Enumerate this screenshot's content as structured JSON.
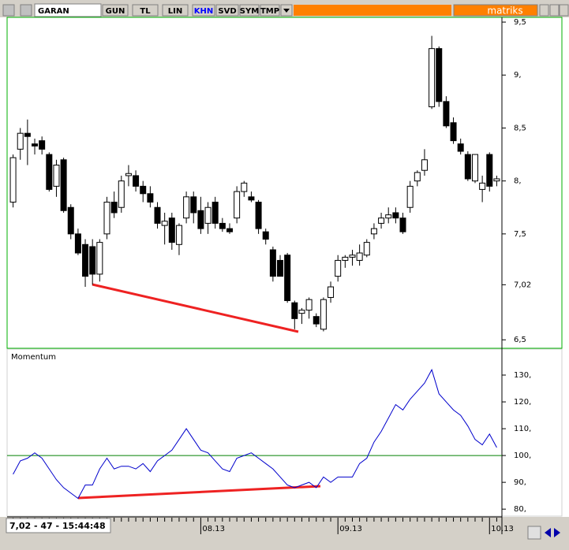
{
  "toolbar": {
    "symbol": "GARAN",
    "buttons": [
      "GUN",
      "TL",
      "LIN",
      "KHN",
      "SVD",
      "SYM",
      "TMP"
    ],
    "brand": "matriks"
  },
  "status": "7,02 - 47 - 15:44:48",
  "chart_data": [
    {
      "type": "candlestick",
      "categories": [
        null,
        null,
        null,
        null,
        null,
        null,
        null,
        null,
        null,
        null,
        null,
        null,
        null,
        null,
        null,
        null,
        null,
        null,
        null,
        null,
        null,
        null,
        null,
        null,
        null,
        null,
        "08.13",
        null,
        null,
        null,
        null,
        null,
        null,
        null,
        null,
        null,
        null,
        null,
        null,
        null,
        null,
        null,
        null,
        null,
        null,
        "09.13",
        null,
        null,
        null,
        null,
        null,
        null,
        null,
        null,
        null,
        null,
        null,
        null,
        null,
        null,
        null,
        null,
        null,
        null,
        null,
        null,
        "10.13",
        null
      ],
      "open": [
        7.8,
        8.3,
        8.45,
        8.35,
        8.38,
        8.25,
        7.95,
        8.2,
        7.75,
        7.5,
        7.4,
        7.38,
        7.12,
        7.5,
        7.8,
        7.75,
        8.05,
        8.05,
        7.95,
        7.88,
        7.75,
        7.58,
        7.65,
        7.4,
        7.65,
        7.85,
        7.72,
        7.6,
        7.8,
        7.6,
        7.55,
        7.65,
        7.9,
        7.85,
        7.8,
        7.52,
        7.35,
        7.25,
        7.3,
        6.85,
        6.75,
        6.78,
        6.72,
        6.6,
        6.9,
        7.1,
        7.25,
        7.28,
        7.25,
        7.3,
        7.5,
        7.6,
        7.65,
        7.7,
        7.65,
        7.75,
        8.0,
        8.1,
        8.7,
        9.25,
        8.75,
        8.55,
        8.35,
        8.25,
        8.0,
        7.92,
        8.25,
        8.0
      ],
      "high": [
        8.25,
        8.5,
        8.58,
        8.4,
        8.42,
        8.27,
        8.2,
        8.22,
        7.78,
        7.55,
        7.45,
        7.45,
        7.45,
        7.85,
        7.9,
        8.05,
        8.15,
        8.1,
        8.0,
        7.95,
        7.8,
        7.7,
        7.7,
        7.6,
        7.9,
        7.9,
        7.85,
        7.8,
        7.85,
        7.65,
        7.6,
        7.95,
        8.0,
        7.9,
        7.82,
        7.55,
        7.38,
        7.3,
        7.32,
        6.87,
        6.8,
        6.9,
        6.75,
        6.9,
        7.05,
        7.3,
        7.3,
        7.35,
        7.4,
        7.45,
        7.6,
        7.7,
        7.75,
        7.75,
        7.7,
        8.0,
        8.1,
        8.3,
        9.37,
        9.27,
        8.8,
        8.6,
        8.4,
        8.28,
        8.25,
        8.05,
        8.27,
        8.05
      ],
      "low": [
        7.75,
        8.2,
        8.15,
        8.25,
        8.25,
        7.9,
        7.85,
        7.7,
        7.45,
        7.3,
        7.0,
        7.02,
        7.05,
        7.45,
        7.65,
        7.7,
        7.95,
        7.9,
        7.8,
        7.75,
        7.55,
        7.4,
        7.35,
        7.3,
        7.6,
        7.6,
        7.5,
        7.5,
        7.55,
        7.52,
        7.5,
        7.6,
        7.85,
        7.8,
        7.5,
        7.4,
        7.05,
        7.1,
        6.85,
        6.6,
        6.65,
        6.7,
        6.62,
        6.58,
        6.85,
        7.05,
        7.18,
        7.2,
        7.2,
        7.28,
        7.45,
        7.55,
        7.6,
        7.6,
        7.5,
        7.7,
        7.95,
        8.05,
        8.68,
        8.7,
        8.5,
        8.35,
        8.25,
        8.0,
        7.98,
        7.8,
        7.9,
        7.95
      ],
      "close": [
        8.22,
        8.45,
        8.42,
        8.33,
        8.3,
        7.92,
        8.15,
        7.72,
        7.5,
        7.32,
        7.1,
        7.12,
        7.42,
        7.8,
        7.7,
        8.0,
        8.07,
        7.95,
        7.88,
        7.8,
        7.6,
        7.62,
        7.42,
        7.58,
        7.85,
        7.7,
        7.55,
        7.75,
        7.6,
        7.55,
        7.52,
        7.9,
        7.98,
        7.82,
        7.55,
        7.45,
        7.1,
        7.1,
        6.87,
        6.7,
        6.78,
        6.88,
        6.65,
        6.88,
        7.0,
        7.25,
        7.28,
        7.3,
        7.32,
        7.42,
        7.55,
        7.65,
        7.68,
        7.65,
        7.52,
        7.95,
        8.08,
        8.2,
        9.25,
        8.75,
        8.52,
        8.38,
        8.28,
        8.02,
        8.25,
        7.98,
        7.95,
        8.02
      ],
      "up_color": "#ffffff",
      "down_color": "#000000",
      "ylim": [
        6.42,
        9.545
      ],
      "yticks": [
        {
          "value": 9.5,
          "label": "9,5"
        },
        {
          "value": 9,
          "label": "9,"
        },
        {
          "value": 8.5,
          "label": "8,5"
        },
        {
          "value": 8,
          "label": "8,"
        },
        {
          "value": 7.5,
          "label": "7,5"
        },
        {
          "value": 7.02,
          "label": "7,02"
        },
        {
          "value": 6.5,
          "label": "6,5"
        }
      ]
    },
    {
      "type": "line",
      "title": "Momentum",
      "categories": [
        null,
        null,
        null,
        null,
        null,
        null,
        null,
        null,
        null,
        null,
        null,
        null,
        null,
        null,
        null,
        null,
        null,
        null,
        null,
        null,
        null,
        null,
        null,
        null,
        null,
        null,
        "08.13",
        null,
        null,
        null,
        null,
        null,
        null,
        null,
        null,
        null,
        null,
        null,
        null,
        null,
        null,
        null,
        null,
        null,
        null,
        "09.13",
        null,
        null,
        null,
        null,
        null,
        null,
        null,
        null,
        null,
        null,
        null,
        null,
        null,
        null,
        null,
        null,
        null,
        null,
        null,
        null,
        "10.13",
        null
      ],
      "values": [
        93,
        98,
        99,
        101,
        99,
        95,
        91,
        88,
        86,
        84,
        89,
        89,
        95,
        99,
        95,
        96,
        96,
        95,
        97,
        94,
        98,
        100,
        102,
        106,
        110,
        106,
        102,
        101,
        98,
        95,
        94,
        99,
        100,
        101,
        99,
        97,
        95,
        92,
        89,
        88,
        89,
        90,
        88,
        92,
        90,
        92,
        92,
        92,
        97,
        99,
        105,
        109,
        114,
        119,
        117,
        121,
        124,
        127,
        132,
        123,
        120,
        117,
        115,
        111,
        106,
        104,
        108,
        103
      ],
      "color": "#0000cc",
      "hline": 100,
      "hline_color": "#008000",
      "ylim": [
        77.4,
        139.7
      ],
      "yticks": [
        {
          "value": 130,
          "label": "130,"
        },
        {
          "value": 120,
          "label": "120,"
        },
        {
          "value": 110,
          "label": "110,"
        },
        {
          "value": 100,
          "label": "100,"
        },
        {
          "value": 90,
          "label": "90,"
        },
        {
          "value": 80,
          "label": "80,"
        }
      ]
    }
  ]
}
